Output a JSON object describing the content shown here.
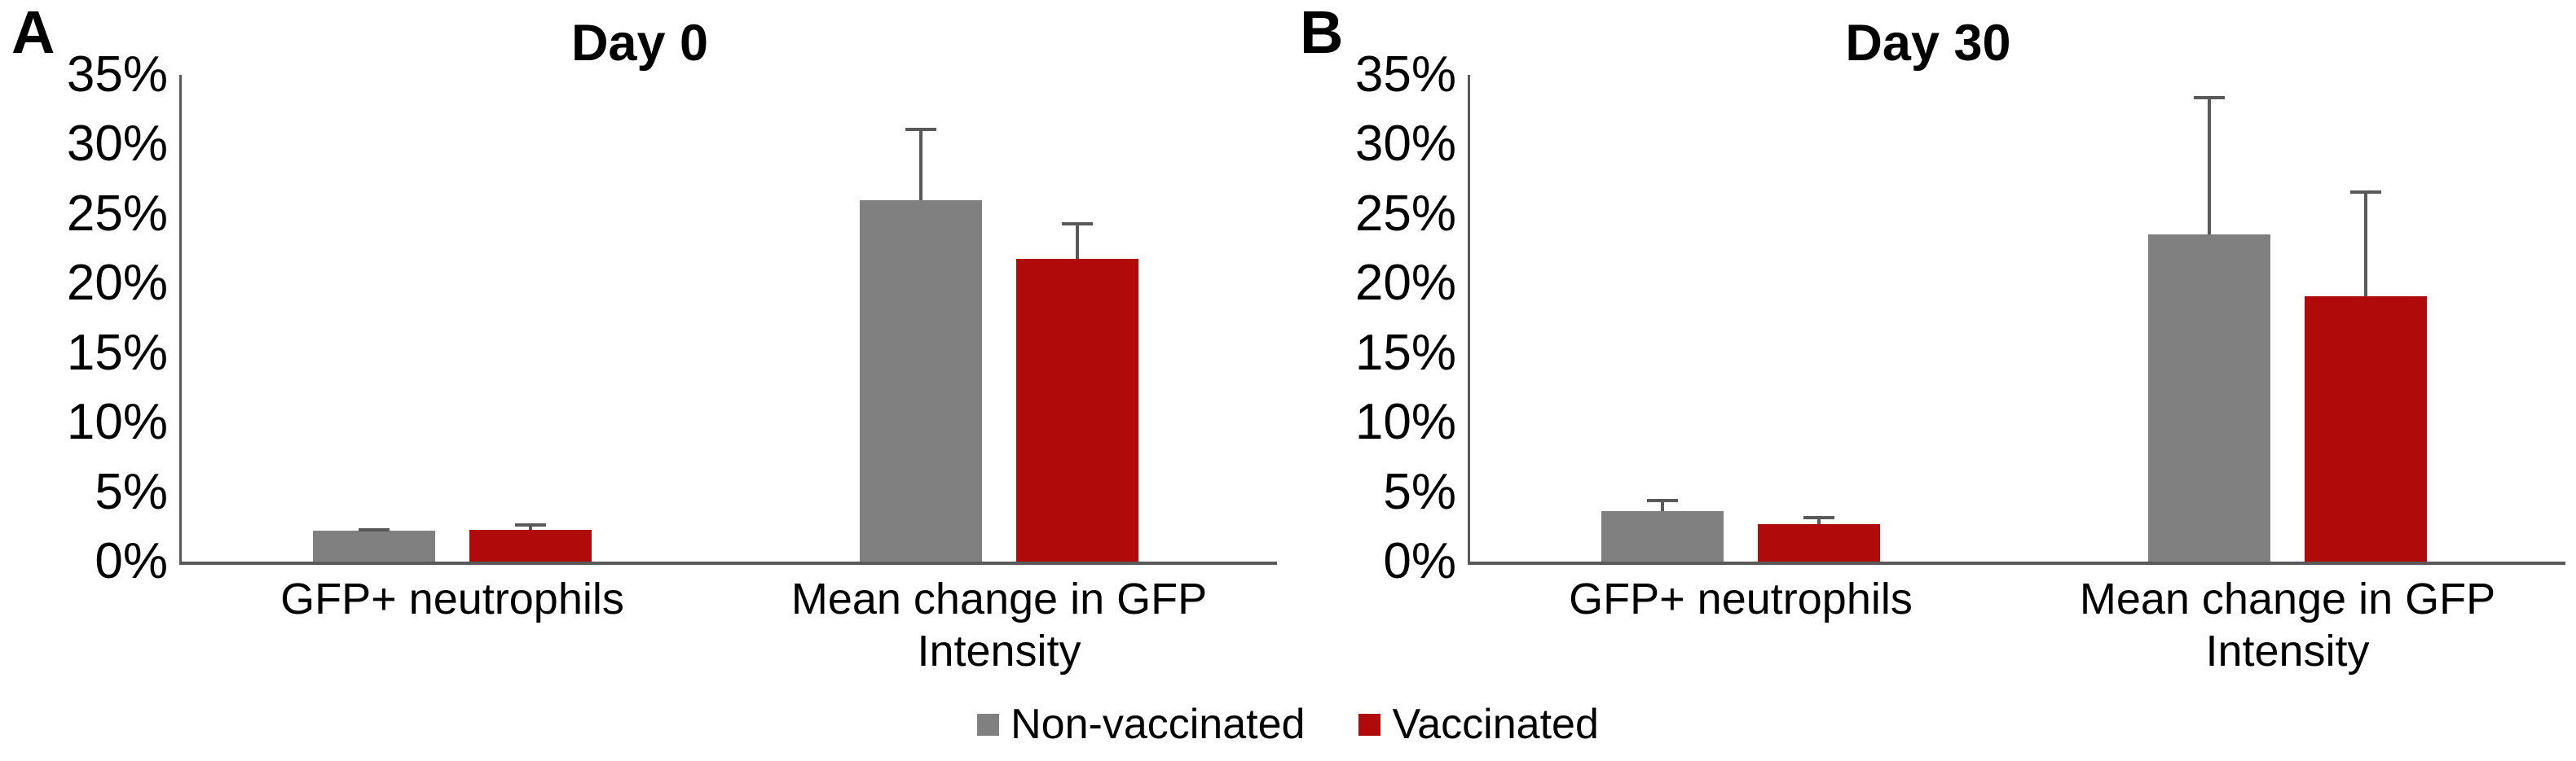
{
  "figure": {
    "background": "#ffffff",
    "colors": {
      "bar_nonvaccinated": "#808080",
      "bar_vaccinated": "#B00A0A",
      "error_bar": "#595959",
      "axis_line": "#595959",
      "text": "#000000"
    }
  },
  "legend": {
    "position": "bottom-center",
    "items": [
      {
        "label": "Non-vaccinated",
        "color": "#808080"
      },
      {
        "label": "Vaccinated",
        "color": "#B00A0A"
      }
    ]
  },
  "chart_data": [
    {
      "type": "bar",
      "panel_letter": "A",
      "title": "Day 0",
      "categories": [
        "GFP+ neutrophils",
        "Mean change in GFP Intensity"
      ],
      "series": [
        {
          "name": "Non-vaccinated",
          "color": "#808080",
          "values": [
            2.2,
            26.0
          ],
          "errors_plus": [
            0.2,
            5.2
          ]
        },
        {
          "name": "Vaccinated",
          "color": "#B00A0A",
          "values": [
            2.3,
            21.8
          ],
          "errors_plus": [
            0.45,
            2.6
          ]
        }
      ],
      "ylabel": "",
      "xlabel": "",
      "ylim": [
        0,
        35
      ],
      "ytick_step": 5,
      "yticks": [
        "0%",
        "5%",
        "10%",
        "15%",
        "20%",
        "25%",
        "30%",
        "35%"
      ],
      "grid": false,
      "error_bars": "plus-direction-only"
    },
    {
      "type": "bar",
      "panel_letter": "B",
      "title": "Day 30",
      "categories": [
        "GFP+ neutrophils",
        "Mean change in GFP Intensity"
      ],
      "series": [
        {
          "name": "Non-vaccinated",
          "color": "#808080",
          "values": [
            3.6,
            23.5
          ],
          "errors_plus": [
            0.9,
            10.0
          ]
        },
        {
          "name": "Vaccinated",
          "color": "#B00A0A",
          "values": [
            2.7,
            19.1
          ],
          "errors_plus": [
            0.6,
            7.6
          ]
        }
      ],
      "ylabel": "",
      "xlabel": "",
      "ylim": [
        0,
        35
      ],
      "ytick_step": 5,
      "yticks": [
        "0%",
        "5%",
        "10%",
        "15%",
        "20%",
        "25%",
        "30%",
        "35%"
      ],
      "grid": false,
      "error_bars": "plus-direction-only"
    }
  ]
}
